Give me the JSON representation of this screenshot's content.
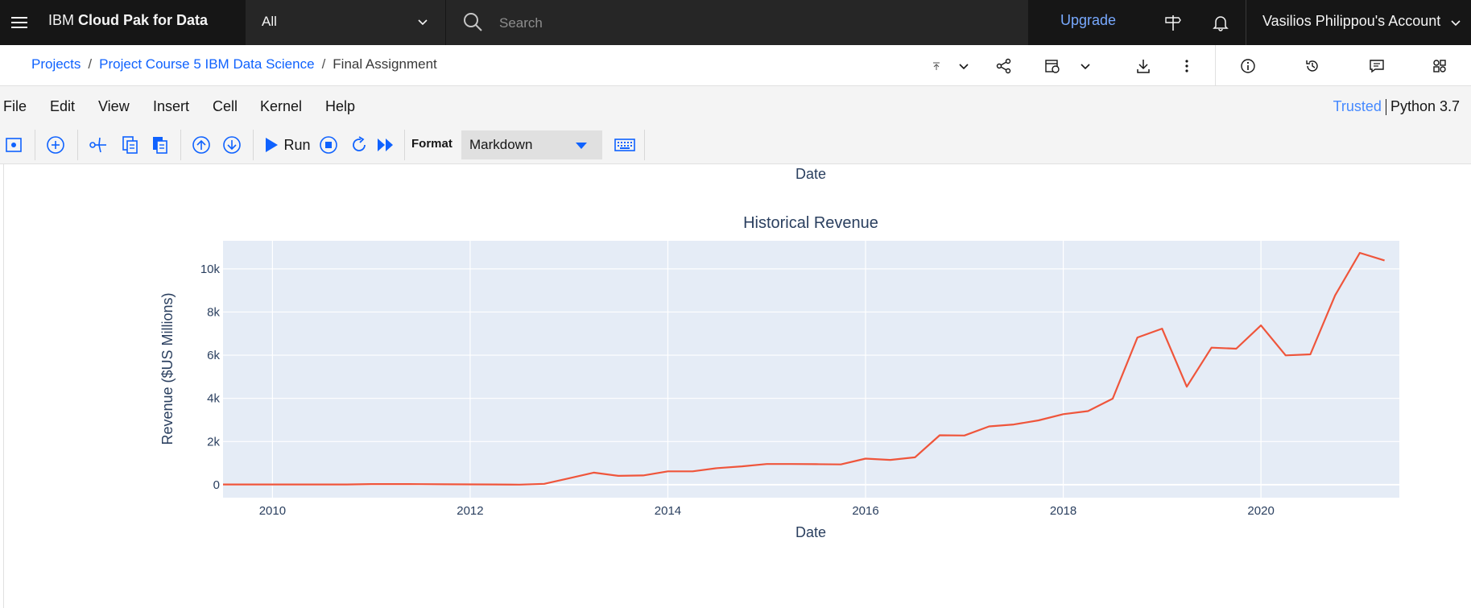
{
  "header": {
    "brand_prefix": "IBM",
    "brand_name": "Cloud Pak for Data",
    "scope_selected": "All",
    "search_placeholder": "Search",
    "upgrade_label": "Upgrade",
    "account_label": "Vasilios Philippou's Account"
  },
  "breadcrumb": {
    "items": [
      "Projects",
      "Project Course 5 IBM Data Science"
    ],
    "current": "Final Assignment"
  },
  "menubar": {
    "items": [
      "File",
      "Edit",
      "View",
      "Insert",
      "Cell",
      "Kernel",
      "Help"
    ],
    "trusted_label": "Trusted",
    "kernel_label": "Python 3.7"
  },
  "toolbar": {
    "run_label": "Run",
    "format_label": "Format",
    "format_value": "Markdown"
  },
  "notebook": {
    "prev_output_xlabel": "Date"
  },
  "colors": {
    "header_bg": "#161616",
    "link_blue": "#0f62fe",
    "upgrade_blue": "#78a9ff",
    "plot_bg": "#e5ecf6",
    "line_color": "#ef553b"
  },
  "chart_data": {
    "type": "line",
    "title": "Historical Revenue",
    "xlabel": "Date",
    "ylabel": "Revenue ($US Millions)",
    "xlim": [
      2009.5,
      2021.4
    ],
    "ylim": [
      -600,
      11300
    ],
    "x_ticks": [
      2010,
      2012,
      2014,
      2016,
      2018,
      2020
    ],
    "y_ticks": [
      0,
      2000,
      4000,
      6000,
      8000,
      10000
    ],
    "y_tick_labels": [
      "0",
      "2k",
      "4k",
      "6k",
      "8k",
      "10k"
    ],
    "grid": true,
    "legend": "none",
    "series": [
      {
        "x": [
          2009.5,
          2009.75,
          2010.0,
          2010.25,
          2010.5,
          2010.75,
          2011.0,
          2011.25,
          2011.5,
          2011.75,
          2012.0,
          2012.25,
          2012.5,
          2012.75,
          2013.0,
          2013.25,
          2013.5,
          2013.75,
          2014.0,
          2014.25,
          2014.5,
          2014.75,
          2015.0,
          2015.25,
          2015.5,
          2015.75,
          2016.0,
          2016.25,
          2016.5,
          2016.75,
          2017.0,
          2017.25,
          2017.5,
          2017.75,
          2018.0,
          2018.25,
          2018.5,
          2018.75,
          2019.0,
          2019.25,
          2019.5,
          2019.75,
          2020.0,
          2020.25,
          2020.5,
          2020.75,
          2021.0,
          2021.25
        ],
        "y": [
          10,
          10,
          10,
          10,
          10,
          10,
          30,
          30,
          25,
          20,
          15,
          10,
          5,
          40,
          300,
          560,
          410,
          430,
          620,
          620,
          770,
          850,
          960,
          960,
          950,
          940,
          1210,
          1150,
          1270,
          2290,
          2280,
          2700,
          2790,
          2980,
          3270,
          3410,
          3990,
          6820,
          7230,
          4540,
          6350,
          6300,
          7380,
          5990,
          6040,
          8770,
          10740,
          10390
        ]
      }
    ]
  }
}
